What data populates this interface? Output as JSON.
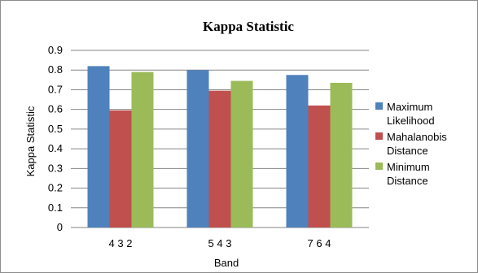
{
  "chart_data": {
    "type": "bar",
    "title": "Kappa Statistic",
    "xlabel": "Band",
    "ylabel": "Kappa Statistic",
    "categories": [
      "4 3 2",
      "5 4 3",
      "7 6 4"
    ],
    "ylim": [
      0,
      0.9
    ],
    "yticks": [
      0,
      0.1,
      0.2,
      0.3,
      0.4,
      0.5,
      0.6,
      0.7,
      0.8,
      0.9
    ],
    "grid": "horizontal",
    "legend": "right",
    "series": [
      {
        "name": "Maximum Likelihood",
        "legend_lines": [
          "Maximum",
          "Likelihood"
        ],
        "color": "#4f81bd",
        "values": [
          0.82,
          0.8,
          0.775
        ]
      },
      {
        "name": "Mahalanobis Distance",
        "legend_lines": [
          "Mahalanobis",
          "Distance"
        ],
        "color": "#c0504d",
        "values": [
          0.595,
          0.695,
          0.62
        ]
      },
      {
        "name": "Minimum Distance",
        "legend_lines": [
          "Minimum",
          "Distance"
        ],
        "color": "#9bbb59",
        "values": [
          0.79,
          0.745,
          0.735
        ]
      }
    ]
  }
}
